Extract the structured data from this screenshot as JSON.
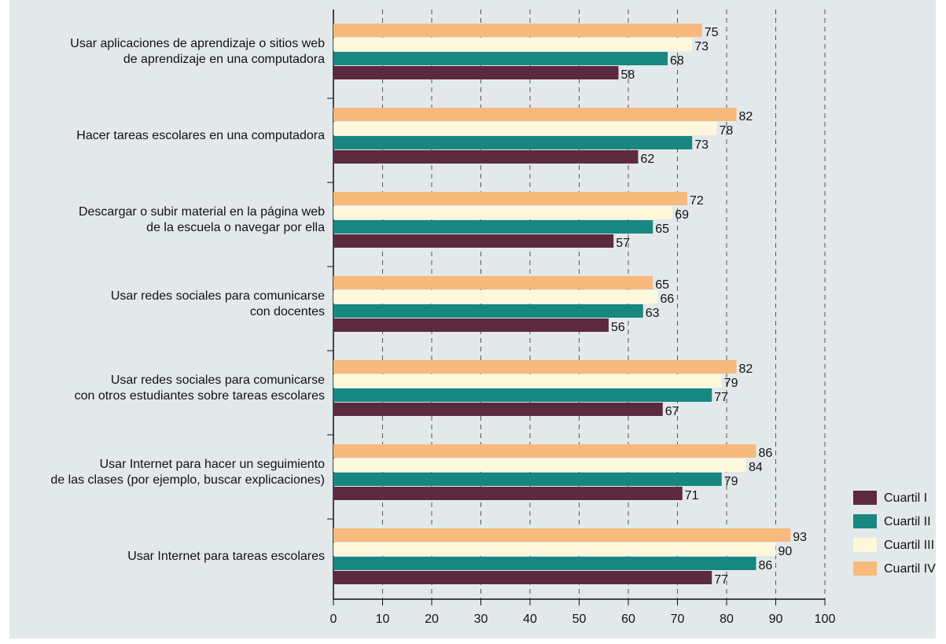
{
  "chart_data": {
    "type": "bar",
    "orientation": "horizontal",
    "categories": [
      [
        "Usar aplicaciones de aprendizaje o sitios web",
        "de aprendizaje en una computadora"
      ],
      [
        "Hacer tareas escolares en una computadora"
      ],
      [
        "Descargar o subir material en la página web",
        "de la escuela o navegar por ella"
      ],
      [
        "Usar redes sociales para comunicarse",
        "con docentes"
      ],
      [
        "Usar redes sociales para comunicarse",
        "con otros estudiantes sobre tareas escolares"
      ],
      [
        "Usar Internet para hacer un seguimiento",
        "de las clases (por ejemplo, buscar explicaciones)"
      ],
      [
        "Usar Internet para tareas escolares"
      ]
    ],
    "series": [
      {
        "name": "Cuartil I",
        "color": "#5b2a3f",
        "values": [
          58,
          62,
          57,
          56,
          67,
          71,
          77
        ]
      },
      {
        "name": "Cuartil II",
        "color": "#17877f",
        "values": [
          68,
          73,
          65,
          63,
          77,
          79,
          86
        ]
      },
      {
        "name": "Cuartil III",
        "color": "#fdf8dc",
        "values": [
          73,
          78,
          69,
          66,
          79,
          84,
          90
        ]
      },
      {
        "name": "Cuartil IV",
        "color": "#f8b97c",
        "values": [
          75,
          82,
          72,
          65,
          82,
          86,
          93
        ]
      }
    ],
    "xlim": [
      0,
      100
    ],
    "xticks": [
      0,
      10,
      20,
      30,
      40,
      50,
      60,
      70,
      80,
      90,
      100
    ],
    "grid": true,
    "legend": "lower right"
  }
}
